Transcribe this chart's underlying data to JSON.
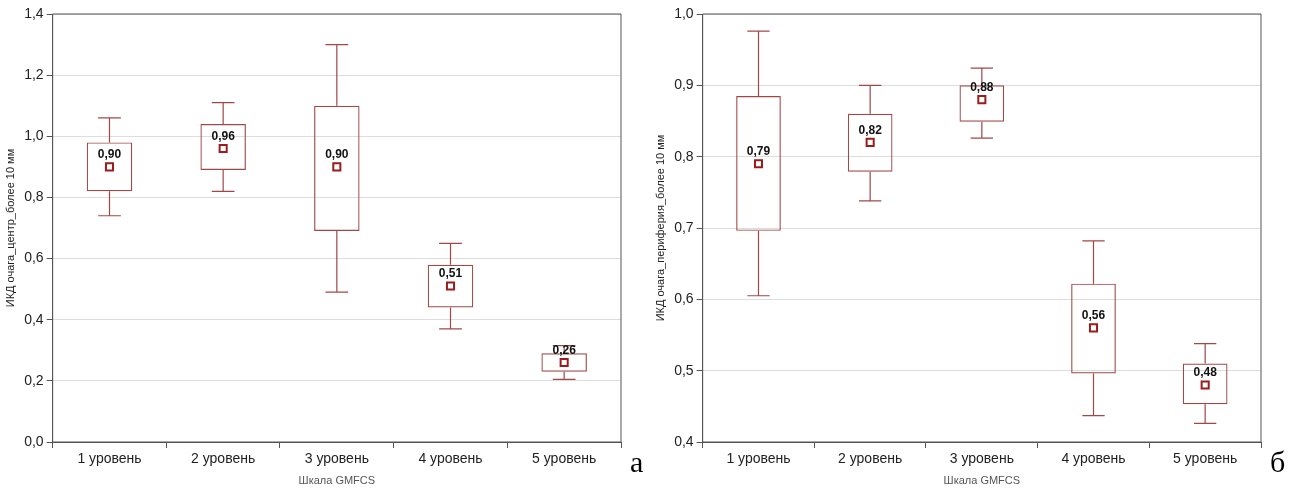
{
  "chart_data": [
    {
      "type": "box",
      "categories": [
        "1 уровень",
        "2 уровень",
        "3 уровень",
        "4 уровень",
        "5 уровень"
      ],
      "xlabel": "Шкала GMFCS",
      "ylabel": "ИКД очага_центр_более 10 мм",
      "color": "#a04848",
      "marker": "square",
      "grid": "y",
      "boxes": [
        {
          "low": 0.74,
          "q1": 0.82,
          "median": 0.9,
          "q3": 0.98,
          "high": 1.06
        },
        {
          "low": 0.82,
          "q1": 0.89,
          "median": 0.96,
          "q3": 1.04,
          "high": 1.11
        },
        {
          "low": 0.49,
          "q1": 0.69,
          "median": 0.9,
          "q3": 1.1,
          "high": 1.3
        },
        {
          "low": 0.37,
          "q1": 0.44,
          "median": 0.51,
          "q3": 0.58,
          "high": 0.65
        },
        {
          "low": 0.205,
          "q1": 0.23,
          "median": 0.26,
          "q3": 0.29,
          "high": 0.315
        }
      ],
      "value_labels": [
        "0,90",
        "0,96",
        "0,90",
        "0,51",
        "0,26"
      ],
      "ylim": [
        0,
        1.4
      ],
      "yticks": [
        {
          "value": 0,
          "label": "0,0"
        },
        {
          "value": 0.2,
          "label": "0,2"
        },
        {
          "value": 0.4,
          "label": "0,4"
        },
        {
          "value": 0.6,
          "label": "0,6"
        },
        {
          "value": 0.8,
          "label": "0,8"
        },
        {
          "value": 1.0,
          "label": "1,0"
        },
        {
          "value": 1.2,
          "label": "1,2"
        },
        {
          "value": 1.4,
          "label": "1,4"
        }
      ],
      "annotations": [
        "а"
      ]
    },
    {
      "type": "box",
      "categories": [
        "1 уровень",
        "2 уровень",
        "3 уровень",
        "4 уровень",
        "5 уровень"
      ],
      "xlabel": "Шкала GMFCS",
      "ylabel": "ИКД очага_периферия_более 10 мм",
      "color": "#a04848",
      "marker": "square",
      "grid": "y",
      "boxes": [
        {
          "low": 0.605,
          "q1": 0.696,
          "median": 0.79,
          "q3": 0.885,
          "high": 0.976
        },
        {
          "low": 0.738,
          "q1": 0.779,
          "median": 0.82,
          "q3": 0.86,
          "high": 0.9
        },
        {
          "low": 0.826,
          "q1": 0.849,
          "median": 0.88,
          "q3": 0.9,
          "high": 0.924
        },
        {
          "low": 0.437,
          "q1": 0.496,
          "median": 0.56,
          "q3": 0.622,
          "high": 0.682
        },
        {
          "low": 0.426,
          "q1": 0.453,
          "median": 0.48,
          "q3": 0.51,
          "high": 0.538
        }
      ],
      "value_labels": [
        "0,79",
        "0,82",
        "0,88",
        "0,56",
        "0,48"
      ],
      "ylim": [
        0.4,
        1.0
      ],
      "yticks": [
        {
          "value": 0.4,
          "label": "0,4"
        },
        {
          "value": 0.5,
          "label": "0,5"
        },
        {
          "value": 0.6,
          "label": "0,6"
        },
        {
          "value": 0.7,
          "label": "0,7"
        },
        {
          "value": 0.8,
          "label": "0,8"
        },
        {
          "value": 0.9,
          "label": "0,9"
        },
        {
          "value": 1.0,
          "label": "1,0"
        }
      ],
      "annotations": [
        "б"
      ]
    }
  ]
}
